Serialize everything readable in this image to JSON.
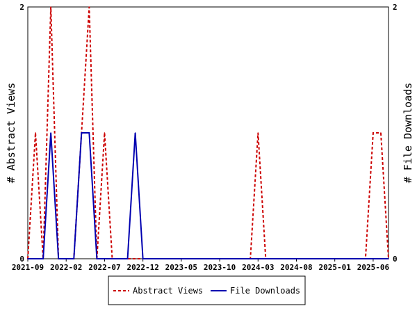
{
  "chart_data": {
    "type": "line",
    "title": "",
    "y_left_label": "# Abstract Views",
    "y_right_label": "# File Downloads",
    "ylim": [
      0,
      2
    ],
    "y_ticks": [
      "0",
      "2"
    ],
    "x_ticks": [
      "2021-09",
      "2022-02",
      "2022-07",
      "2022-12",
      "2023-05",
      "2023-10",
      "2024-03",
      "2024-08",
      "2025-01",
      "2025-06"
    ],
    "grid": false,
    "legend_position": "bottom",
    "x": [
      "2021-09",
      "2021-10",
      "2021-11",
      "2021-12",
      "2022-01",
      "2022-02",
      "2022-03",
      "2022-04",
      "2022-05",
      "2022-06",
      "2022-07",
      "2022-08",
      "2022-09",
      "2022-10",
      "2022-11",
      "2022-12",
      "2023-01",
      "2023-02",
      "2023-03",
      "2023-04",
      "2023-05",
      "2023-06",
      "2023-07",
      "2023-08",
      "2023-09",
      "2023-10",
      "2023-11",
      "2023-12",
      "2024-01",
      "2024-02",
      "2024-03",
      "2024-04",
      "2024-05",
      "2024-06",
      "2024-07",
      "2024-08",
      "2024-09",
      "2024-10",
      "2024-11",
      "2024-12",
      "2025-01",
      "2025-02",
      "2025-03",
      "2025-04",
      "2025-05",
      "2025-06",
      "2025-07",
      "2025-08"
    ],
    "series": [
      {
        "name": "Abstract Views",
        "axis": "left",
        "color": "#cc0000",
        "dash": true,
        "values": [
          0,
          1,
          0,
          2,
          0,
          0,
          0,
          1,
          2,
          0,
          1,
          0,
          0,
          0,
          0,
          0,
          0,
          0,
          0,
          0,
          0,
          0,
          0,
          0,
          0,
          0,
          0,
          0,
          0,
          0,
          1,
          0,
          0,
          0,
          0,
          0,
          0,
          0,
          0,
          0,
          0,
          0,
          0,
          0,
          0,
          1,
          1,
          0
        ]
      },
      {
        "name": "File Downloads",
        "axis": "right",
        "color": "#0000b0",
        "dash": false,
        "values": [
          0,
          0,
          0,
          1,
          0,
          0,
          0,
          1,
          1,
          0,
          0,
          0,
          0,
          0,
          1,
          0,
          0,
          0,
          0,
          0,
          0,
          0,
          0,
          0,
          0,
          0,
          0,
          0,
          0,
          0,
          0,
          0,
          0,
          0,
          0,
          0,
          0,
          0,
          0,
          0,
          0,
          0,
          0,
          0,
          0,
          0,
          0,
          0
        ]
      }
    ]
  }
}
